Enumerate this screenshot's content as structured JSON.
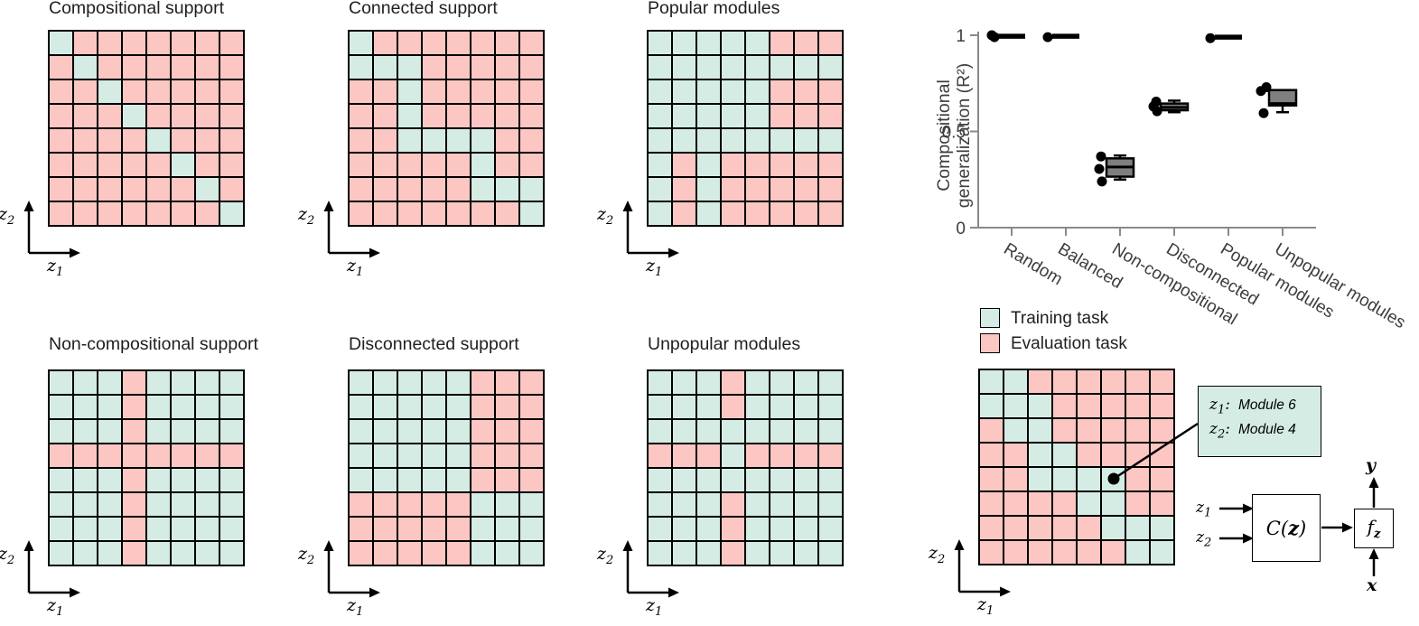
{
  "colors": {
    "training": "#d5ece5",
    "evaluation": "#fcc7c3",
    "box_fill": "#7f7f7f",
    "axis": "#8a8a8a",
    "label": "#3d3d3d"
  },
  "axis_labels": {
    "x_base": "z",
    "x_sub": "1",
    "y_base": "z",
    "y_sub": "2"
  },
  "panels": [
    {
      "title": "Compositional support",
      "rows": [
        "TEEEEEEE",
        "ETEEEEEE",
        "EETEEEEE",
        "EEETEEEE",
        "EEEETEEE",
        "EEEEETEE",
        "EEEEEETE",
        "EEEEEEET"
      ]
    },
    {
      "title": "Connected support",
      "rows": [
        "TEEEEEEE",
        "TTTEEEEE",
        "EETEEEEE",
        "EETEEEEE",
        "EETTTTEE",
        "EEEEETEE",
        "EEEEETTT",
        "EEEEEEET"
      ]
    },
    {
      "title": "Popular modules",
      "rows": [
        "TTTTTEEE",
        "TTTTTTTT",
        "TTTTTEEE",
        "TTTTTEEE",
        "TTTTTTTT",
        "TETEEEEE",
        "TETEEEEE",
        "TETEEEEE"
      ]
    },
    {
      "title": "Non-compositional support",
      "rows": [
        "TTTETTTT",
        "TTTETTTT",
        "TTTETTTT",
        "EEEEEEEE",
        "TTTETTTT",
        "TTTETTTT",
        "TTTETTTT",
        "TTTETTTT"
      ]
    },
    {
      "title": "Disconnected support",
      "rows": [
        "TTTTTEEE",
        "TTTTTEEE",
        "TTTTTEEE",
        "TTTTTEEE",
        "TTTTTEEE",
        "EEEEETTT",
        "EEEEETTT",
        "EEEEETTT"
      ]
    },
    {
      "title": "Unpopular modules",
      "rows": [
        "TTTETTTT",
        "TTTETTTT",
        "TTTTTTTT",
        "EEETEEEE",
        "TTTTTTTT",
        "TTTETTTT",
        "TTTETTTT",
        "TTTETTTT"
      ]
    }
  ],
  "demo_grid": {
    "rows": [
      "TTEEEEEE",
      "TTTEEEEE",
      "ETTEEEEE",
      "EETTEEEE",
      "EETTTTEE",
      "EEEETTEE",
      "EEEEETTT",
      "EEEEEETT"
    ],
    "marker": {
      "row": 4,
      "col": 5
    }
  },
  "legend": {
    "items": [
      {
        "label": "Training task",
        "color": "training"
      },
      {
        "label": "Evaluation task",
        "color": "evaluation"
      }
    ]
  },
  "annotation": {
    "lines": [
      {
        "var_base": "z",
        "var_sub": "1",
        "colon": ":",
        "value": "Module 6"
      },
      {
        "var_base": "z",
        "var_sub": "2",
        "colon": ":",
        "value": "Module 4"
      }
    ]
  },
  "flow": {
    "input1_base": "z",
    "input1_sub": "1",
    "input2_base": "z",
    "input2_sub": "2",
    "composer_pre": "C(",
    "composer_arg": "z",
    "composer_post": ")",
    "func_base": "f",
    "func_sub": "z",
    "output_label": "y",
    "input_label": "x"
  },
  "chart_data": {
    "type": "box",
    "title": "",
    "ylabel_lines": [
      "Compositional",
      "generalization (R²)"
    ],
    "yticks": [
      {
        "v": 0,
        "label": "0"
      },
      {
        "v": 0.5,
        "label": "0.5"
      },
      {
        "v": 1,
        "label": "1"
      }
    ],
    "ylim": [
      0,
      1.05
    ],
    "grid": false,
    "categories": [
      "Random",
      "Balanced",
      "Non-compositional",
      "Disconnected",
      "Popular modules",
      "Unpopular modules"
    ],
    "boxes": [
      {
        "category": "Random",
        "median": 0.995,
        "q1": 0.99,
        "q3": 1.0,
        "whisker_low": 0.99,
        "whisker_high": 1.0,
        "points": [
          {
            "v": 1.0,
            "dx": -22
          },
          {
            "v": 0.99,
            "dx": -19
          }
        ]
      },
      {
        "category": "Balanced",
        "median": 0.995,
        "q1": 0.99,
        "q3": 1.0,
        "whisker_low": 0.99,
        "whisker_high": 1.0,
        "points": [
          {
            "v": 0.99,
            "dx": -20
          }
        ]
      },
      {
        "category": "Non-compositional",
        "median": 0.315,
        "q1": 0.265,
        "q3": 0.36,
        "whisker_low": 0.25,
        "whisker_high": 0.375,
        "points": [
          {
            "v": 0.37,
            "dx": -21
          },
          {
            "v": 0.305,
            "dx": -23
          },
          {
            "v": 0.24,
            "dx": -20
          }
        ]
      },
      {
        "category": "Disconnected",
        "median": 0.625,
        "q1": 0.61,
        "q3": 0.645,
        "whisker_low": 0.6,
        "whisker_high": 0.66,
        "points": [
          {
            "v": 0.655,
            "dx": -20
          },
          {
            "v": 0.63,
            "dx": -23
          },
          {
            "v": 0.605,
            "dx": -19
          }
        ]
      },
      {
        "category": "Popular modules",
        "median": 0.99,
        "q1": 0.985,
        "q3": 0.995,
        "whisker_low": 0.985,
        "whisker_high": 0.995,
        "points": [
          {
            "v": 0.985,
            "dx": -20
          }
        ]
      },
      {
        "category": "Unpopular modules",
        "median": 0.645,
        "q1": 0.635,
        "q3": 0.715,
        "whisker_low": 0.6,
        "whisker_high": 0.715,
        "points": [
          {
            "v": 0.73,
            "dx": -18
          },
          {
            "v": 0.71,
            "dx": -24
          },
          {
            "v": 0.595,
            "dx": -21
          }
        ]
      }
    ]
  }
}
